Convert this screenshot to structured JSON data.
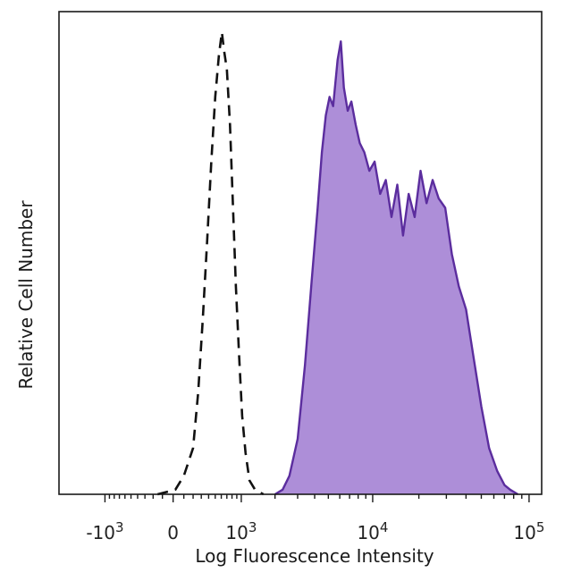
{
  "chart_data": {
    "type": "area",
    "title": "",
    "xlabel": "Log Fluorescence Intensity",
    "ylabel": "Relative Cell Number",
    "x_scale": "biexponential",
    "xlim": [
      -2500,
      120000
    ],
    "ylim": [
      0,
      1
    ],
    "grid": false,
    "legend": "none",
    "x_ticks": [
      {
        "value": -1000,
        "base": "-10",
        "exp": "3"
      },
      {
        "value": 0,
        "base": "0",
        "exp": ""
      },
      {
        "value": 1000,
        "base": "10",
        "exp": "3"
      },
      {
        "value": 10000,
        "base": "10",
        "exp": "4"
      },
      {
        "value": 100000,
        "base": "10",
        "exp": "5"
      }
    ],
    "series": [
      {
        "style": "dashed",
        "color": "#111111",
        "x": [
          -150,
          20,
          100,
          200,
          260,
          320,
          380,
          440,
          500,
          560,
          610,
          650,
          700,
          760,
          820,
          880,
          950,
          1020,
          1100,
          1200,
          1350,
          1600
        ],
        "y": [
          0,
          0.01,
          0.04,
          0.1,
          0.22,
          0.38,
          0.55,
          0.72,
          0.86,
          0.95,
          1.0,
          0.96,
          0.92,
          0.8,
          0.62,
          0.45,
          0.3,
          0.17,
          0.09,
          0.03,
          0.01,
          0
        ]
      },
      {
        "style": "filled",
        "color": "#5b2d9e",
        "fill": "#ad8ed8",
        "x": [
          2000,
          2300,
          2600,
          3000,
          3400,
          3800,
          4200,
          4500,
          4800,
          5100,
          5400,
          5800,
          6100,
          6400,
          6800,
          7200,
          7700,
          8200,
          8800,
          9500,
          10300,
          11200,
          12200,
          13300,
          14500,
          15800,
          17200,
          18800,
          20500,
          22400,
          24500,
          26800,
          29500,
          32500,
          36000,
          40000,
          44500,
          50000,
          56000,
          63000,
          70000,
          76000,
          85000
        ],
        "y": [
          0,
          0.01,
          0.04,
          0.12,
          0.28,
          0.46,
          0.62,
          0.74,
          0.82,
          0.86,
          0.84,
          0.94,
          0.98,
          0.88,
          0.83,
          0.85,
          0.8,
          0.76,
          0.74,
          0.7,
          0.72,
          0.65,
          0.68,
          0.6,
          0.67,
          0.56,
          0.65,
          0.6,
          0.7,
          0.63,
          0.68,
          0.64,
          0.62,
          0.52,
          0.45,
          0.4,
          0.3,
          0.19,
          0.1,
          0.05,
          0.02,
          0.01,
          0
        ]
      }
    ]
  }
}
